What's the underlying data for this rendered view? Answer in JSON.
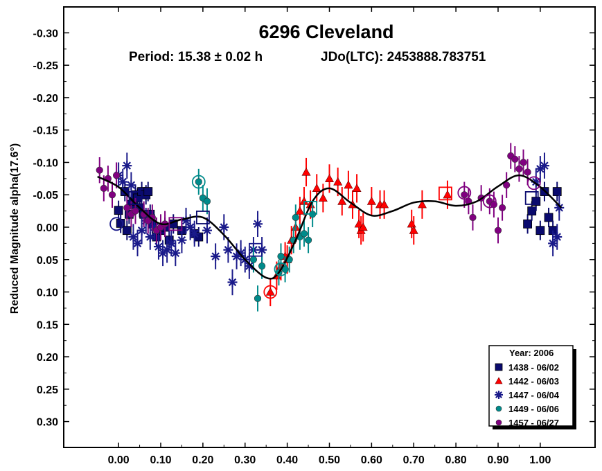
{
  "chart_data": {
    "type": "scatter",
    "title": "6296 Cleveland",
    "period_text": "Period: 15.38 ± 0.02 h",
    "epoch_text": "JDo(LTC): 2453888.783751",
    "ylabel": "Reduced Magnitude alpha(17.6°)",
    "xlabel": "",
    "xlim": [
      -0.13,
      1.13
    ],
    "ylim": [
      -0.34,
      0.34
    ],
    "y_inverted": true,
    "x_ticks": [
      0.0,
      0.1,
      0.2,
      0.3,
      0.4,
      0.5,
      0.6,
      0.7,
      0.8,
      0.9,
      1.0
    ],
    "x_tick_labels": [
      "0.00",
      "0.10",
      "0.20",
      "0.30",
      "0.40",
      "0.50",
      "0.60",
      "0.70",
      "0.80",
      "0.90",
      "1.00"
    ],
    "y_ticks": [
      -0.3,
      -0.25,
      -0.2,
      -0.15,
      -0.1,
      -0.05,
      0.0,
      0.05,
      0.1,
      0.15,
      0.2,
      0.25,
      0.3
    ],
    "y_tick_labels": [
      "-0.30",
      "-0.25",
      "-0.20",
      "-0.15",
      "-0.10",
      "-0.05",
      "0.00",
      "0.05",
      "0.10",
      "0.15",
      "0.20",
      "0.25",
      "0.30"
    ],
    "grid": false,
    "legend_position": "bottom-right",
    "legend_title": "Year: 2006",
    "curve": {
      "color": "#000000",
      "x": [
        -0.05,
        0.0,
        0.05,
        0.1,
        0.15,
        0.2,
        0.25,
        0.3,
        0.35,
        0.38,
        0.42,
        0.46,
        0.5,
        0.55,
        0.6,
        0.65,
        0.7,
        0.75,
        0.8,
        0.85,
        0.9,
        0.95,
        1.0,
        1.05
      ],
      "y": [
        -0.078,
        -0.062,
        -0.03,
        -0.005,
        -0.012,
        -0.015,
        0.012,
        0.05,
        0.078,
        0.07,
        0.02,
        -0.04,
        -0.06,
        -0.038,
        -0.018,
        -0.025,
        -0.038,
        -0.04,
        -0.033,
        -0.04,
        -0.063,
        -0.08,
        -0.062,
        -0.03
      ]
    },
    "series": [
      {
        "name": "1438 - 06/02",
        "marker": "square",
        "color": "#0a0a6e",
        "x": [
          0.0,
          0.005,
          0.015,
          0.02,
          0.025,
          0.03,
          0.035,
          0.04,
          0.045,
          0.05,
          0.055,
          0.06,
          0.065,
          0.07,
          0.075,
          0.08,
          0.09,
          0.1,
          0.11,
          0.12,
          0.13,
          0.15,
          0.18,
          0.19,
          0.97,
          0.98,
          0.99,
          1.0,
          1.01,
          1.02,
          1.03,
          1.04
        ],
        "y": [
          -0.026,
          -0.006,
          -0.055,
          0.005,
          -0.02,
          -0.035,
          -0.04,
          -0.05,
          -0.045,
          -0.03,
          -0.055,
          -0.02,
          -0.05,
          -0.055,
          -0.02,
          -0.005,
          0.015,
          0.005,
          0.0,
          0.02,
          -0.005,
          0.005,
          0.01,
          0.015,
          -0.005,
          -0.025,
          -0.04,
          0.005,
          -0.055,
          -0.015,
          0.005,
          -0.055
        ],
        "err": [
          0.015,
          0.015,
          0.015,
          0.015,
          0.015,
          0.015,
          0.015,
          0.015,
          0.015,
          0.015,
          0.015,
          0.015,
          0.015,
          0.015,
          0.015,
          0.015,
          0.015,
          0.015,
          0.015,
          0.015,
          0.015,
          0.015,
          0.015,
          0.015,
          0.015,
          0.015,
          0.015,
          0.015,
          0.015,
          0.015,
          0.015,
          0.015
        ]
      },
      {
        "name": "1442 - 06/03",
        "marker": "triangle",
        "color": "#ff0000",
        "x": [
          0.36,
          0.375,
          0.385,
          0.395,
          0.4,
          0.41,
          0.42,
          0.43,
          0.44,
          0.445,
          0.455,
          0.47,
          0.485,
          0.5,
          0.52,
          0.53,
          0.545,
          0.555,
          0.565,
          0.57,
          0.575,
          0.58,
          0.6,
          0.62,
          0.63,
          0.695,
          0.7,
          0.72,
          0.78
        ],
        "y": [
          0.1,
          0.075,
          0.06,
          0.045,
          0.05,
          0.02,
          0.0,
          -0.025,
          -0.04,
          -0.085,
          -0.035,
          -0.06,
          -0.045,
          -0.075,
          -0.07,
          -0.04,
          -0.065,
          -0.035,
          -0.06,
          -0.005,
          0.005,
          0.0,
          -0.04,
          -0.035,
          -0.035,
          -0.005,
          0.005,
          -0.035,
          -0.05
        ],
        "err": [
          0.022,
          0.022,
          0.022,
          0.022,
          0.022,
          0.022,
          0.022,
          0.022,
          0.022,
          0.022,
          0.022,
          0.022,
          0.022,
          0.022,
          0.022,
          0.022,
          0.022,
          0.022,
          0.022,
          0.022,
          0.022,
          0.022,
          0.022,
          0.022,
          0.022,
          0.022,
          0.022,
          0.022,
          0.022
        ]
      },
      {
        "name": "1447 - 06/04",
        "marker": "star",
        "color": "#1a1a8a",
        "x": [
          0.0,
          0.01,
          0.02,
          0.03,
          0.035,
          0.045,
          0.055,
          0.065,
          0.075,
          0.085,
          0.095,
          0.105,
          0.115,
          0.125,
          0.135,
          0.15,
          0.16,
          0.17,
          0.18,
          0.21,
          0.23,
          0.25,
          0.26,
          0.27,
          0.28,
          0.29,
          0.3,
          0.31,
          0.32,
          0.33,
          0.34,
          0.99,
          1.0,
          1.01,
          1.03,
          1.04,
          1.045
        ],
        "y": [
          -0.08,
          -0.07,
          -0.095,
          -0.065,
          0.015,
          0.025,
          0.005,
          -0.01,
          0.015,
          0.0,
          0.03,
          0.04,
          0.035,
          0.025,
          0.04,
          0.02,
          -0.01,
          0.0,
          0.01,
          0.005,
          0.045,
          0.0,
          0.035,
          0.085,
          0.045,
          0.04,
          0.05,
          0.06,
          0.035,
          -0.005,
          0.035,
          -0.07,
          -0.09,
          -0.095,
          0.025,
          0.015,
          -0.03
        ],
        "err": [
          0.02,
          0.02,
          0.02,
          0.02,
          0.02,
          0.02,
          0.02,
          0.02,
          0.02,
          0.02,
          0.02,
          0.02,
          0.02,
          0.02,
          0.02,
          0.02,
          0.02,
          0.02,
          0.02,
          0.02,
          0.02,
          0.02,
          0.02,
          0.02,
          0.02,
          0.02,
          0.02,
          0.02,
          0.02,
          0.02,
          0.02,
          0.02,
          0.02,
          0.02,
          0.02,
          0.02,
          0.02
        ]
      },
      {
        "name": "1449 - 06/06",
        "marker": "circle",
        "color": "#008b8b",
        "x": [
          0.19,
          0.2,
          0.21,
          0.32,
          0.33,
          0.34,
          0.38,
          0.385,
          0.395,
          0.405,
          0.415,
          0.42,
          0.43,
          0.44,
          0.45,
          0.46
        ],
        "y": [
          -0.07,
          -0.045,
          -0.04,
          0.05,
          0.11,
          0.06,
          0.07,
          0.045,
          0.065,
          0.05,
          0.02,
          -0.015,
          0.015,
          0.01,
          0.02,
          -0.02
        ],
        "err": [
          0.02,
          0.02,
          0.02,
          0.02,
          0.02,
          0.02,
          0.02,
          0.02,
          0.02,
          0.02,
          0.02,
          0.02,
          0.02,
          0.02,
          0.02,
          0.02
        ]
      },
      {
        "name": "1457 - 06/27",
        "marker": "circle",
        "color": "#800080",
        "x": [
          -0.045,
          -0.035,
          -0.025,
          -0.015,
          -0.005,
          0.02,
          0.03,
          0.04,
          0.06,
          0.07,
          0.08,
          0.09,
          0.1,
          0.11,
          0.82,
          0.83,
          0.84,
          0.86,
          0.88,
          0.89,
          0.9,
          0.91,
          0.92,
          0.93,
          0.94,
          0.95,
          0.96,
          0.97
        ],
        "y": [
          -0.088,
          -0.06,
          -0.075,
          -0.05,
          -0.08,
          -0.03,
          -0.02,
          -0.025,
          -0.02,
          -0.01,
          -0.015,
          0.005,
          0.0,
          -0.005,
          -0.05,
          -0.04,
          -0.015,
          -0.045,
          -0.04,
          -0.035,
          0.005,
          -0.03,
          -0.065,
          -0.11,
          -0.105,
          -0.09,
          -0.1,
          -0.085
        ],
        "err": [
          0.02,
          0.02,
          0.02,
          0.02,
          0.02,
          0.02,
          0.02,
          0.02,
          0.02,
          0.02,
          0.02,
          0.02,
          0.02,
          0.02,
          0.02,
          0.02,
          0.02,
          0.02,
          0.02,
          0.02,
          0.02,
          0.02,
          0.02,
          0.02,
          0.02,
          0.02,
          0.02,
          0.02
        ]
      }
    ],
    "open_markers": [
      {
        "series": "1438 - 06/02",
        "marker": "square",
        "x": 0.04,
        "y": -0.045
      },
      {
        "series": "1438 - 06/02",
        "marker": "square",
        "x": 0.2,
        "y": -0.015
      },
      {
        "series": "1438 - 06/02",
        "marker": "square",
        "x": 0.98,
        "y": -0.045
      },
      {
        "series": "1447 - 06/04",
        "marker": "circle",
        "x": -0.005,
        "y": -0.005
      },
      {
        "series": "1447 - 06/04",
        "marker": "square",
        "x": 0.325,
        "y": 0.035
      },
      {
        "series": "1442 - 06/03",
        "marker": "circle",
        "x": 0.36,
        "y": 0.1
      },
      {
        "series": "1442 - 06/03",
        "marker": "square",
        "x": 0.775,
        "y": -0.052
      },
      {
        "series": "1449 - 06/06",
        "marker": "circle",
        "x": 0.19,
        "y": -0.07
      },
      {
        "series": "1449 - 06/06",
        "marker": "circle",
        "x": 0.385,
        "y": 0.065
      },
      {
        "series": "1449 - 06/06",
        "marker": "square",
        "x": 0.455,
        "y": -0.03
      },
      {
        "series": "1457 - 06/27",
        "marker": "square",
        "x": 0.135,
        "y": -0.005
      },
      {
        "series": "1457 - 06/27",
        "marker": "circle",
        "x": 0.82,
        "y": -0.053
      },
      {
        "series": "1457 - 06/27",
        "marker": "circle",
        "x": 0.88,
        "y": -0.04
      },
      {
        "series": "1457 - 06/27",
        "marker": "circle",
        "x": 0.985,
        "y": -0.068
      }
    ]
  }
}
